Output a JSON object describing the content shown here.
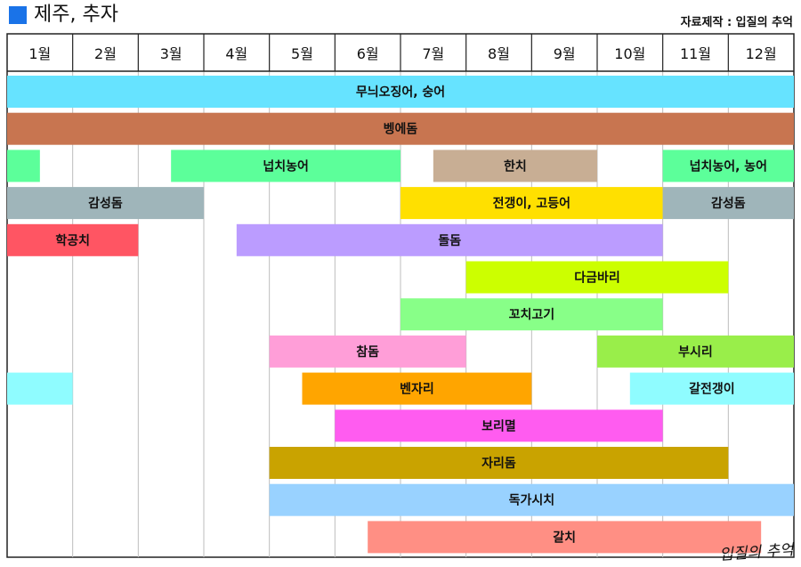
{
  "header": {
    "title": "제주, 추자",
    "credit": "자료제작 : 입질의 추억",
    "title_color": "#1a73e8"
  },
  "watermark": "입질의 추억",
  "chart_data": {
    "type": "gantt",
    "months": [
      "1월",
      "2월",
      "3월",
      "4월",
      "5월",
      "6월",
      "7월",
      "8월",
      "9월",
      "10월",
      "11월",
      "12월"
    ],
    "x_range": [
      1,
      13
    ],
    "rows": [
      {
        "segments": [
          {
            "label": "무늬오징어, 숭어",
            "start": 1,
            "end": 13,
            "color": "#66e3ff"
          }
        ]
      },
      {
        "segments": [
          {
            "label": "벵에돔",
            "start": 1,
            "end": 13,
            "color": "#c87550"
          }
        ]
      },
      {
        "segments": [
          {
            "label": "",
            "start": 1,
            "end": 1.5,
            "color": "#5cff9a"
          },
          {
            "label": "넙치농어",
            "start": 3.5,
            "end": 7,
            "color": "#5cff9a"
          },
          {
            "label": "한치",
            "start": 7.5,
            "end": 10,
            "color": "#c8ae94"
          },
          {
            "label": "넙치농어, 농어",
            "start": 11,
            "end": 13,
            "color": "#5cff9a"
          }
        ]
      },
      {
        "segments": [
          {
            "label": "감성돔",
            "start": 1,
            "end": 4,
            "color": "#9fb5ba"
          },
          {
            "label": "전갱이, 고등어",
            "start": 7,
            "end": 11,
            "color": "#ffe000"
          },
          {
            "label": "감성돔",
            "start": 11,
            "end": 13,
            "color": "#9fb5ba"
          }
        ]
      },
      {
        "segments": [
          {
            "label": "학공치",
            "start": 1,
            "end": 3,
            "color": "#ff5563"
          },
          {
            "label": "돌돔",
            "start": 4.5,
            "end": 11,
            "color": "#bb9cff"
          }
        ]
      },
      {
        "segments": [
          {
            "label": "다금바리",
            "start": 8,
            "end": 12,
            "color": "#ccff00"
          }
        ]
      },
      {
        "segments": [
          {
            "label": "꼬치고기",
            "start": 7,
            "end": 11,
            "color": "#88ff88"
          }
        ]
      },
      {
        "segments": [
          {
            "label": "참돔",
            "start": 5,
            "end": 8,
            "color": "#ff9ed8"
          },
          {
            "label": "부시리",
            "start": 10,
            "end": 13,
            "color": "#99ee4a"
          }
        ]
      },
      {
        "segments": [
          {
            "label": "",
            "start": 1,
            "end": 2,
            "color": "#8ffcff"
          },
          {
            "label": "벤자리",
            "start": 5.5,
            "end": 9,
            "color": "#ffa500"
          },
          {
            "label": "갈전갱이",
            "start": 10.5,
            "end": 13,
            "color": "#8ffcff"
          }
        ]
      },
      {
        "segments": [
          {
            "label": "보리멸",
            "start": 6,
            "end": 11,
            "color": "#ff5cf0"
          }
        ]
      },
      {
        "segments": [
          {
            "label": "자리돔",
            "start": 5,
            "end": 12,
            "color": "#c9a300"
          }
        ]
      },
      {
        "segments": [
          {
            "label": "독가시치",
            "start": 5,
            "end": 13,
            "color": "#99d2ff"
          }
        ]
      },
      {
        "segments": [
          {
            "label": "갈치",
            "start": 6.5,
            "end": 12.5,
            "color": "#ff8f84"
          }
        ]
      }
    ]
  }
}
